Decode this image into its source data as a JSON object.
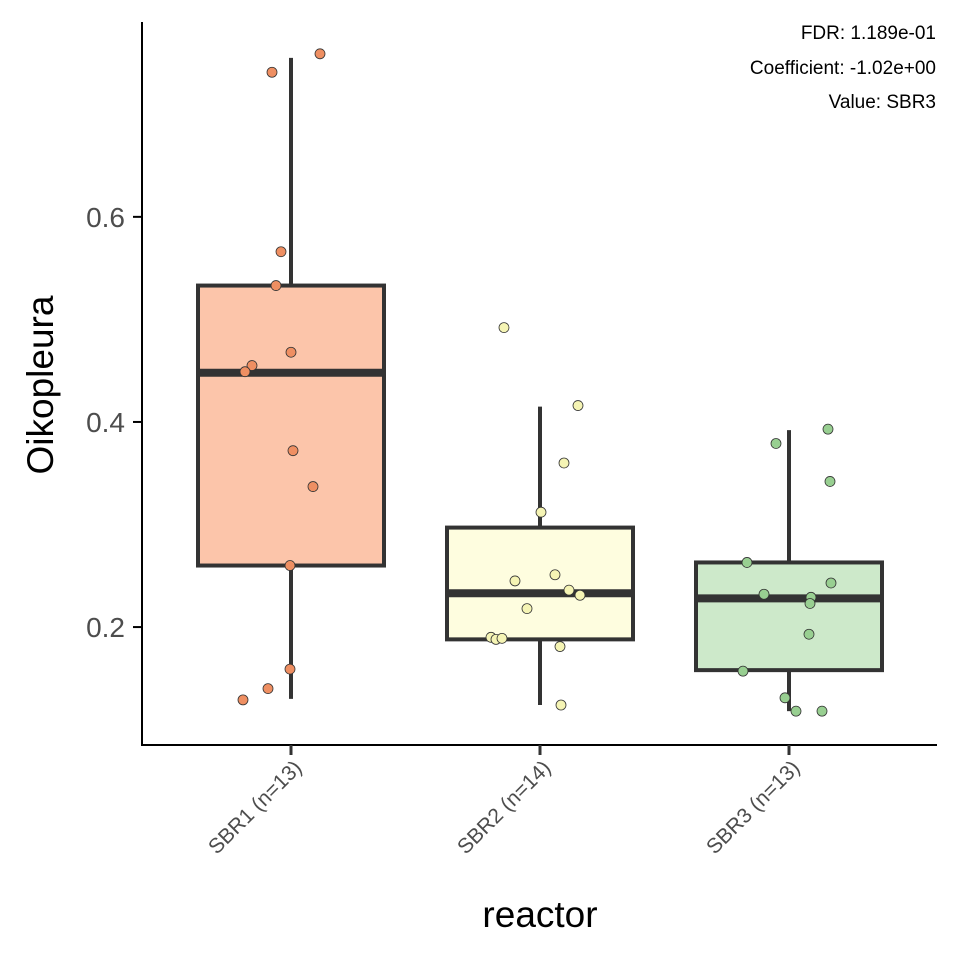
{
  "chart_data": {
    "type": "box",
    "xlabel": "reactor",
    "ylabel": "Oikopleura",
    "ylim": [
      0.085,
      0.79
    ],
    "yticks": [
      0.2,
      0.4,
      0.6
    ],
    "grid": false,
    "annotations": [
      "FDR: 1.189e-01",
      "Coefficient: -1.02e+00",
      "Value: SBR3"
    ],
    "categories": [
      "SBR1 (n=13)",
      "SBR2 (n=14)",
      "SBR3 (n=13)"
    ],
    "colors": {
      "fill": [
        "#fcc5aa",
        "#fefddf",
        "#cde9ca"
      ],
      "point": [
        "#ef8f62",
        "#f5f4b4",
        "#98cf91"
      ],
      "box_stroke": "#333333"
    },
    "boxes": [
      {
        "category": "SBR1 (n=13)",
        "whisker_low": 0.13,
        "q1": 0.26,
        "median": 0.448,
        "q3": 0.533,
        "whisker_high": 0.755
      },
      {
        "category": "SBR2 (n=14)",
        "whisker_low": 0.124,
        "q1": 0.188,
        "median": 0.233,
        "q3": 0.297,
        "whisker_high": 0.415
      },
      {
        "category": "SBR3 (n=13)",
        "whisker_low": 0.118,
        "q1": 0.158,
        "median": 0.228,
        "q3": 0.263,
        "whisker_high": 0.392
      }
    ],
    "points": [
      [
        {
          "jitter": 0.29,
          "y": 0.759
        },
        {
          "jitter": -0.19,
          "y": 0.741
        },
        {
          "jitter": -0.1,
          "y": 0.566
        },
        {
          "jitter": -0.15,
          "y": 0.533
        },
        {
          "jitter": 0.0,
          "y": 0.468
        },
        {
          "jitter": -0.39,
          "y": 0.455
        },
        {
          "jitter": -0.46,
          "y": 0.449
        },
        {
          "jitter": 0.02,
          "y": 0.372
        },
        {
          "jitter": 0.22,
          "y": 0.337
        },
        {
          "jitter": -0.01,
          "y": 0.26
        },
        {
          "jitter": -0.01,
          "y": 0.159
        },
        {
          "jitter": -0.23,
          "y": 0.14
        },
        {
          "jitter": -0.48,
          "y": 0.129
        }
      ],
      [
        {
          "jitter": -0.36,
          "y": 0.492
        },
        {
          "jitter": 0.38,
          "y": 0.416
        },
        {
          "jitter": 0.24,
          "y": 0.36
        },
        {
          "jitter": 0.01,
          "y": 0.312
        },
        {
          "jitter": 0.15,
          "y": 0.251
        },
        {
          "jitter": -0.25,
          "y": 0.245
        },
        {
          "jitter": 0.29,
          "y": 0.236
        },
        {
          "jitter": 0.4,
          "y": 0.231
        },
        {
          "jitter": -0.13,
          "y": 0.218
        },
        {
          "jitter": -0.49,
          "y": 0.19
        },
        {
          "jitter": -0.44,
          "y": 0.188
        },
        {
          "jitter": -0.38,
          "y": 0.189
        },
        {
          "jitter": 0.2,
          "y": 0.181
        },
        {
          "jitter": 0.21,
          "y": 0.124
        }
      ],
      [
        {
          "jitter": 0.39,
          "y": 0.393
        },
        {
          "jitter": -0.13,
          "y": 0.379
        },
        {
          "jitter": 0.41,
          "y": 0.342
        },
        {
          "jitter": -0.42,
          "y": 0.263
        },
        {
          "jitter": 0.42,
          "y": 0.243
        },
        {
          "jitter": -0.25,
          "y": 0.232
        },
        {
          "jitter": 0.22,
          "y": 0.229
        },
        {
          "jitter": 0.21,
          "y": 0.223
        },
        {
          "jitter": 0.2,
          "y": 0.193
        },
        {
          "jitter": -0.46,
          "y": 0.157
        },
        {
          "jitter": -0.04,
          "y": 0.131
        },
        {
          "jitter": 0.07,
          "y": 0.118
        },
        {
          "jitter": 0.33,
          "y": 0.118
        }
      ]
    ]
  }
}
